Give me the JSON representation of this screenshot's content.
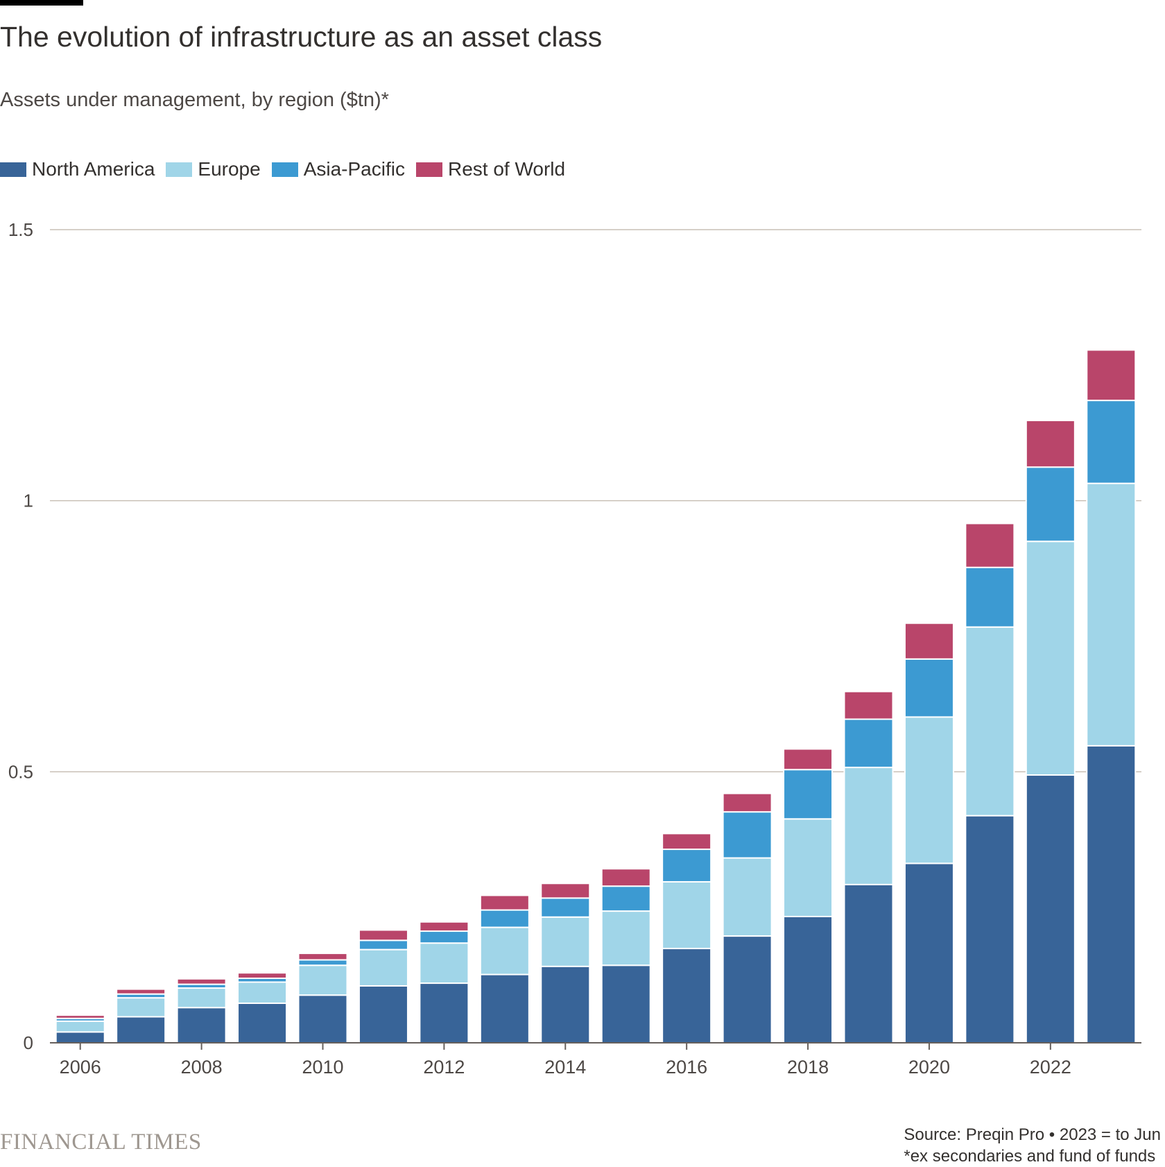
{
  "header": {
    "title": "The evolution of infrastructure as an asset class",
    "subtitle": "Assets under management, by region ($tn)*"
  },
  "footer": {
    "brand": "FINANCIAL TIMES",
    "source": "Source: Preqin Pro • 2023 = to Jun",
    "note": "*ex secondaries and fund of funds"
  },
  "chart_data": {
    "type": "bar",
    "stacked": true,
    "title": "The evolution of infrastructure as an asset class",
    "subtitle": "Assets under management, by region ($tn)*",
    "xlabel": "",
    "ylabel": "",
    "ylim": [
      0,
      1.5
    ],
    "yticks": [
      0,
      0.5,
      1,
      1.5
    ],
    "ytick_labels": [
      "0",
      "0.5",
      "1",
      "1.5"
    ],
    "xtick_labels": [
      "2006",
      "2008",
      "2010",
      "2012",
      "2014",
      "2016",
      "2018",
      "2020",
      "2022"
    ],
    "grid": true,
    "legend_position": "top-left",
    "categories": [
      "2006",
      "2007",
      "2008",
      "2009",
      "2010",
      "2011",
      "2012",
      "2013",
      "2014",
      "2015",
      "2016",
      "2017",
      "2018",
      "2019",
      "2020",
      "2021",
      "2022",
      "2023"
    ],
    "series": [
      {
        "name": "North America",
        "color": "#386498",
        "values": [
          0.02,
          0.048,
          0.065,
          0.073,
          0.088,
          0.105,
          0.11,
          0.126,
          0.141,
          0.143,
          0.174,
          0.197,
          0.233,
          0.292,
          0.331,
          0.419,
          0.494,
          0.548
        ]
      },
      {
        "name": "Europe",
        "color": "#a0d5e8",
        "values": [
          0.02,
          0.035,
          0.036,
          0.039,
          0.055,
          0.067,
          0.074,
          0.087,
          0.091,
          0.1,
          0.123,
          0.144,
          0.18,
          0.216,
          0.27,
          0.348,
          0.431,
          0.484
        ]
      },
      {
        "name": "Asia-Pacific",
        "color": "#3c9ad2",
        "values": [
          0.005,
          0.007,
          0.007,
          0.007,
          0.01,
          0.017,
          0.022,
          0.032,
          0.035,
          0.046,
          0.06,
          0.085,
          0.091,
          0.089,
          0.107,
          0.11,
          0.137,
          0.153
        ]
      },
      {
        "name": "Rest of World",
        "color": "#b9456a",
        "values": [
          0.006,
          0.009,
          0.01,
          0.01,
          0.012,
          0.019,
          0.017,
          0.027,
          0.027,
          0.032,
          0.029,
          0.034,
          0.038,
          0.051,
          0.066,
          0.081,
          0.086,
          0.093
        ]
      }
    ]
  }
}
